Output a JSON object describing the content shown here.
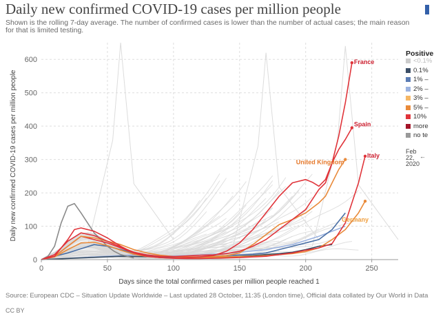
{
  "header": {
    "title": "Daily new confirmed COVID-19 cases per million people",
    "subtitle": "Shown is the rolling 7-day average. The number of confirmed cases is lower than the number of actual cases; the main reason for that is limited testing."
  },
  "footer": {
    "source": "Source: European CDC – Situation Update Worldwide – Last updated 28 October, 11:35 (London time), Official data collated by Our World in Data",
    "license": "CC BY"
  },
  "legend": {
    "title": "Positive",
    "items": [
      {
        "label": "<0.1%",
        "color": "#cccccc"
      },
      {
        "label": "0.1%",
        "color": "#3c4e66"
      },
      {
        "label": "1% –",
        "color": "#5b7cb4"
      },
      {
        "label": "2% –",
        "color": "#9cb3e0"
      },
      {
        "label": "3% –",
        "color": "#f5b766"
      },
      {
        "label": "5% –",
        "color": "#e98a3a"
      },
      {
        "label": "10%",
        "color": "#e0343a"
      },
      {
        "label": "more",
        "color": "#a31428"
      },
      {
        "label": "no te",
        "color": "#999999"
      }
    ]
  },
  "timeline": {
    "date_label": "Feb 22, 2020",
    "arrow": "←"
  },
  "chart_data": {
    "type": "line",
    "xlabel": "Days since the total confirmed cases per million people reached 1",
    "ylabel": "Daily new confirmed COVID-19 cases per million people",
    "xlim": [
      0,
      270
    ],
    "ylim": [
      0,
      650
    ],
    "xticks": [
      0,
      50,
      100,
      150,
      200,
      250
    ],
    "yticks": [
      0,
      100,
      200,
      300,
      400,
      500,
      600
    ],
    "grid": true,
    "series": [
      {
        "name": "France",
        "color": "#e0343a",
        "label_color": "#cc1f2f",
        "labeled": true,
        "x": [
          0,
          10,
          20,
          30,
          40,
          50,
          60,
          70,
          80,
          90,
          100,
          110,
          120,
          130,
          140,
          150,
          160,
          170,
          180,
          190,
          200,
          210,
          215,
          220,
          225,
          230,
          235
        ],
        "y": [
          0,
          15,
          55,
          80,
          72,
          55,
          38,
          22,
          14,
          10,
          9,
          11,
          13,
          14,
          18,
          25,
          40,
          60,
          90,
          120,
          150,
          210,
          230,
          290,
          370,
          470,
          590
        ]
      },
      {
        "name": "Spain",
        "color": "#e0343a",
        "label_color": "#cc1f2f",
        "labeled": true,
        "x": [
          0,
          10,
          20,
          25,
          30,
          40,
          50,
          60,
          70,
          80,
          90,
          100,
          110,
          120,
          130,
          140,
          150,
          160,
          170,
          180,
          190,
          200,
          205,
          210,
          215,
          220,
          225,
          230,
          235
        ],
        "y": [
          0,
          10,
          60,
          90,
          95,
          85,
          65,
          40,
          20,
          10,
          6,
          5,
          6,
          8,
          12,
          25,
          50,
          90,
          140,
          190,
          230,
          240,
          232,
          220,
          240,
          290,
          330,
          360,
          395
        ]
      },
      {
        "name": "United Kingdom",
        "color": "#e98a3a",
        "label_color": "#e5782a",
        "labeled": true,
        "x": [
          0,
          10,
          20,
          30,
          40,
          50,
          60,
          70,
          80,
          90,
          100,
          110,
          120,
          130,
          140,
          150,
          160,
          170,
          180,
          190,
          200,
          210,
          215,
          220,
          225,
          230
        ],
        "y": [
          0,
          10,
          40,
          70,
          65,
          55,
          45,
          30,
          20,
          13,
          9,
          8,
          8,
          9,
          12,
          20,
          45,
          75,
          105,
          120,
          140,
          170,
          190,
          230,
          270,
          300
        ]
      },
      {
        "name": "Italy",
        "color": "#e0343a",
        "label_color": "#cc1f2f",
        "labeled": true,
        "x": [
          0,
          10,
          20,
          30,
          40,
          50,
          60,
          70,
          80,
          90,
          100,
          110,
          120,
          130,
          140,
          150,
          160,
          170,
          180,
          190,
          200,
          210,
          220,
          230,
          240,
          245
        ],
        "y": [
          0,
          10,
          40,
          70,
          60,
          50,
          35,
          20,
          10,
          6,
          4,
          3,
          3,
          4,
          5,
          6,
          8,
          10,
          15,
          20,
          28,
          35,
          48,
          110,
          230,
          310
        ]
      },
      {
        "name": "Germany",
        "color": "#e98a3a",
        "label_color": "#f0a040",
        "labeled": true,
        "x": [
          0,
          10,
          20,
          30,
          40,
          50,
          60,
          70,
          80,
          90,
          100,
          110,
          120,
          130,
          140,
          150,
          160,
          170,
          180,
          190,
          200,
          210,
          220,
          230,
          240,
          245
        ],
        "y": [
          0,
          8,
          30,
          50,
          52,
          42,
          28,
          16,
          9,
          6,
          5,
          5,
          6,
          7,
          8,
          9,
          10,
          12,
          15,
          18,
          24,
          35,
          60,
          90,
          140,
          175
        ]
      },
      {
        "name": "",
        "color": "#8a8a8a",
        "labeled": false,
        "x": [
          0,
          5,
          10,
          15,
          20,
          25,
          30,
          35,
          40,
          45,
          50,
          55,
          60,
          70
        ],
        "y": [
          0,
          10,
          40,
          110,
          160,
          168,
          140,
          110,
          80,
          60,
          40,
          25,
          15,
          5
        ]
      },
      {
        "name": "",
        "color": "#4a6fa5",
        "labeled": false,
        "x": [
          0,
          20,
          40,
          50,
          60,
          70,
          80,
          90,
          100,
          110,
          120,
          130,
          140,
          150,
          160,
          170,
          180,
          190,
          200,
          210,
          220,
          230
        ],
        "y": [
          0,
          20,
          45,
          40,
          30,
          20,
          12,
          8,
          6,
          6,
          8,
          10,
          12,
          14,
          16,
          20,
          30,
          40,
          50,
          60,
          90,
          140
        ]
      },
      {
        "name": "",
        "color": "#34495e",
        "labeled": false,
        "x": [
          0,
          30,
          60,
          90,
          120,
          140,
          150,
          160,
          170,
          180,
          190,
          200,
          210,
          220
        ],
        "y": [
          0,
          5,
          10,
          8,
          6,
          8,
          10,
          12,
          15,
          18,
          22,
          30,
          40,
          45
        ]
      },
      {
        "name": "",
        "color": "#9cb3e0",
        "labeled": false,
        "x": [
          0,
          40,
          70,
          90,
          110,
          130,
          150,
          170,
          190,
          210,
          230
        ],
        "y": [
          0,
          8,
          14,
          10,
          12,
          16,
          22,
          30,
          45,
          70,
          100
        ]
      }
    ]
  }
}
